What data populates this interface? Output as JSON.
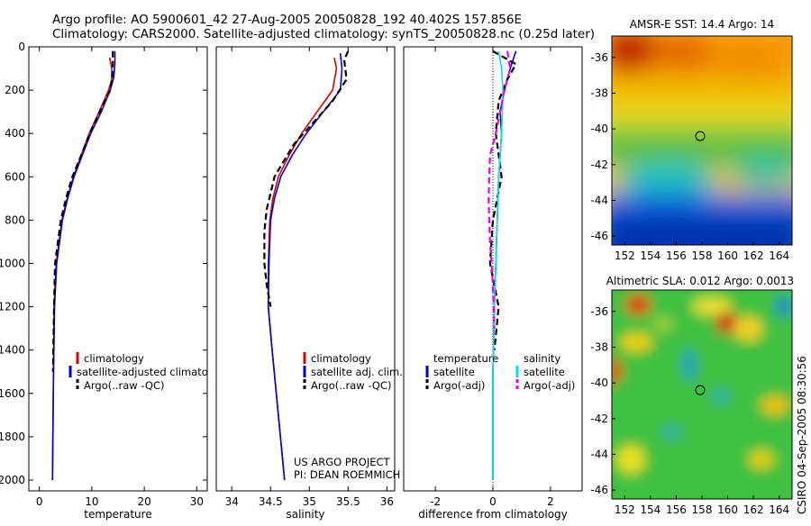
{
  "header": {
    "line1": "Argo profile: AO 5900601_42 27-Aug-2005 20050828_192 40.402S 157.856E",
    "line2": "Climatology: CARS2000. Satellite-adjusted climatology: synTS_20050828.nc (0.25d later)"
  },
  "colors": {
    "climatology": "#dd0000",
    "satellite": "#0000dd",
    "argo": "#000000",
    "sal_satellite": "#00e0ee",
    "sal_argo": "#ee00ee"
  },
  "chart_data": [
    {
      "id": "temperature",
      "type": "line",
      "xlabel": "temperature",
      "xlim": [
        -2,
        32
      ],
      "ylim": [
        0,
        2050
      ],
      "y_reversed": true,
      "xticks": [
        0,
        10,
        20,
        30
      ],
      "yticks": [
        0,
        200,
        400,
        600,
        800,
        1000,
        1200,
        1400,
        1600,
        1800,
        2000
      ],
      "legend": [
        "climatology",
        "satellite-adjusted climatology",
        "Argo(..raw -QC)"
      ],
      "series": [
        {
          "name": "climatology",
          "style": "solid",
          "color": "#dd0000",
          "x": [
            13.4,
            13.8,
            13.8,
            13.2,
            11.4,
            9.5,
            8.0,
            6.5,
            5.3,
            4.3,
            3.2,
            2.8,
            2.7,
            2.5
          ],
          "y": [
            50,
            100,
            150,
            200,
            300,
            400,
            500,
            600,
            700,
            800,
            1000,
            1200,
            1500,
            2000
          ]
        },
        {
          "name": "satellite-adjusted climatology",
          "style": "solid",
          "color": "#0000dd",
          "x": [
            14.4,
            14.4,
            14.2,
            13.5,
            11.8,
            9.8,
            8.2,
            6.6,
            5.4,
            4.4,
            3.3,
            2.9,
            2.7,
            2.5
          ],
          "y": [
            20,
            80,
            140,
            200,
            300,
            400,
            500,
            600,
            700,
            800,
            1000,
            1200,
            1500,
            2000
          ]
        },
        {
          "name": "Argo(..raw -QC)",
          "style": "dash",
          "color": "#000000",
          "x": [
            14.0,
            14.0,
            13.9,
            13.5,
            11.5,
            9.6,
            8.0,
            6.3,
            5.1,
            4.1,
            3.0,
            2.8,
            2.6
          ],
          "y": [
            20,
            80,
            140,
            200,
            300,
            400,
            500,
            600,
            700,
            800,
            1000,
            1200,
            1500
          ]
        }
      ]
    },
    {
      "id": "salinity",
      "type": "line",
      "xlabel": "salinity",
      "xlim": [
        33.8,
        36.1
      ],
      "ylim": [
        0,
        2050
      ],
      "y_reversed": true,
      "xticks": [
        34,
        34.5,
        35,
        35.5,
        36
      ],
      "legend": [
        "climatology",
        "satellite adj. clim.",
        "Argo(..raw -QC)"
      ],
      "annotation": [
        "US ARGO PROJECT",
        "PI: DEAN ROEMMICH"
      ],
      "series": [
        {
          "name": "climatology",
          "style": "solid",
          "color": "#dd0000",
          "x": [
            35.32,
            35.35,
            35.3,
            35.1,
            34.9,
            34.74,
            34.6,
            34.53,
            34.49,
            34.47,
            34.47,
            34.52,
            34.6,
            34.68
          ],
          "y": [
            50,
            100,
            200,
            300,
            400,
            500,
            600,
            700,
            800,
            1000,
            1200,
            1400,
            1700,
            2000
          ]
        },
        {
          "name": "satellite adj. clim.",
          "style": "solid",
          "color": "#0000dd",
          "x": [
            35.4,
            35.42,
            35.4,
            35.18,
            34.96,
            34.78,
            34.63,
            34.55,
            34.5,
            34.48,
            34.47,
            34.52,
            34.6,
            34.68
          ],
          "y": [
            30,
            100,
            200,
            300,
            400,
            500,
            600,
            700,
            800,
            1000,
            1200,
            1400,
            1700,
            2000
          ]
        },
        {
          "name": "Argo(..raw -QC)",
          "style": "dash",
          "color": "#000000",
          "x": [
            35.5,
            35.45,
            35.48,
            35.3,
            35.05,
            34.8,
            34.55,
            34.45,
            34.42,
            34.42,
            34.45,
            34.5
          ],
          "y": [
            20,
            60,
            150,
            250,
            350,
            450,
            600,
            750,
            850,
            1000,
            1100,
            1200
          ]
        }
      ]
    },
    {
      "id": "difference",
      "type": "line",
      "xlabel": "difference from climatology",
      "xlim": [
        -3.1,
        3.1
      ],
      "ylim": [
        0,
        2050
      ],
      "y_reversed": true,
      "xticks": [
        -2,
        0,
        2
      ],
      "legend_groups": [
        {
          "title": "temperature",
          "entries": [
            "satellite",
            "Argo(-adj)"
          ]
        },
        {
          "title": "salinity",
          "entries": [
            "satellite",
            "Argo(-adj)"
          ]
        }
      ],
      "series": [
        {
          "name": "temperature satellite",
          "style": "solid",
          "color": "#0000dd",
          "x": [
            0.8,
            0.6,
            0.4,
            0.25,
            0.3,
            0.2,
            0.15,
            0.1,
            0.05,
            0.0,
            0.0
          ],
          "y": [
            20,
            100,
            200,
            300,
            400,
            600,
            800,
            1000,
            1200,
            1500,
            2000
          ]
        },
        {
          "name": "temperature Argo(-adj)",
          "style": "dash",
          "color": "#000000",
          "x": [
            0.0,
            0.4,
            0.8,
            0.5,
            0.2,
            0.1,
            0.3,
            0.0,
            -0.1,
            0.2,
            0.05
          ],
          "y": [
            20,
            50,
            80,
            150,
            250,
            400,
            600,
            800,
            1000,
            1200,
            1400
          ]
        },
        {
          "name": "salinity satellite",
          "style": "solid",
          "color": "#00e0ee",
          "x": [
            0.2,
            0.3,
            0.35,
            0.3,
            0.2,
            0.15,
            0.1,
            0.05,
            0.0,
            0.0
          ],
          "y": [
            20,
            100,
            200,
            400,
            600,
            800,
            1000,
            1200,
            1500,
            2000
          ]
        },
        {
          "name": "salinity Argo(-adj)",
          "style": "dash",
          "color": "#ee00ee",
          "x": [
            0.5,
            0.6,
            0.4,
            0.1,
            -0.1,
            -0.15,
            -0.1,
            0.0,
            0.05
          ],
          "y": [
            20,
            100,
            200,
            400,
            500,
            700,
            900,
            1100,
            1300
          ]
        }
      ]
    },
    {
      "id": "sst_map",
      "type": "heatmap",
      "title": "AMSR-E SST: 14.4 Argo: 14",
      "xlim": [
        151,
        165
      ],
      "ylim": [
        -46.5,
        -34.8
      ],
      "xticks": [
        152,
        154,
        156,
        158,
        160,
        162,
        164
      ],
      "yticks": [
        -36,
        -38,
        -40,
        -42,
        -44,
        -46
      ],
      "marker": {
        "lon": 157.856,
        "lat": -40.402
      }
    },
    {
      "id": "sla_map",
      "type": "heatmap",
      "title": "Altimetric SLA: 0.012 Argo: 0.0013",
      "xlim": [
        151,
        165
      ],
      "ylim": [
        -46.5,
        -34.8
      ],
      "xticks": [
        152,
        154,
        156,
        158,
        160,
        162,
        164
      ],
      "yticks": [
        -36,
        -38,
        -40,
        -42,
        -44,
        -46
      ],
      "marker": {
        "lon": 157.856,
        "lat": -40.402
      }
    }
  ],
  "footer": {
    "credit": "CSIRO 04-Sep-2005 08:30:56"
  }
}
